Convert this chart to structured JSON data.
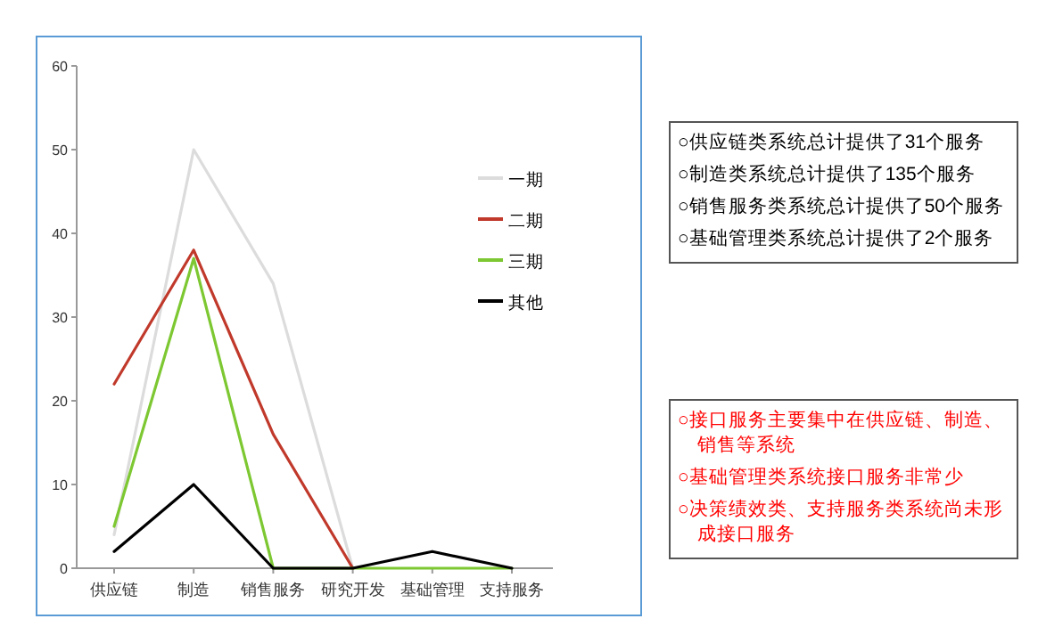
{
  "chart_data": [
    {
      "type": "line",
      "categories": [
        "供应链",
        "制造",
        "销售服务",
        "研究开发",
        "基础管理",
        "支持服务"
      ],
      "series": [
        {
          "name": "一期",
          "color": "#dcdcdc",
          "values": [
            4,
            50,
            34,
            0,
            null,
            null
          ]
        },
        {
          "name": "二期",
          "color": "#c0392b",
          "values": [
            22,
            38,
            16,
            0,
            null,
            null
          ]
        },
        {
          "name": "三期",
          "color": "#7dc832",
          "values": [
            5,
            37,
            0,
            0,
            0,
            0
          ]
        },
        {
          "name": "其他",
          "color": "#000000",
          "values": [
            2,
            10,
            0,
            0,
            2,
            0
          ]
        }
      ],
      "ylim": [
        0,
        60
      ],
      "yticks": [
        0,
        10,
        20,
        30,
        40,
        50,
        60
      ],
      "grid": false,
      "legend": "top right",
      "marker": "none",
      "line_style": "solid"
    },
    {
      "type": "other",
      "color": "#000000",
      "annotations": [
        "○供应链类系统总计提供了31个服务",
        "○制造类系统总计提供了135个服务",
        "○销售服务类系统总计提供了50个服务",
        "○基础管理类系统总计提供了2个服务"
      ]
    },
    {
      "type": "other",
      "color": "#ff0000",
      "annotations": [
        "○接口服务主要集中在供应链、制造、销售等系统",
        "○基础管理类系统接口服务非常少",
        "○决策绩效类、支持服务类系统尚未形成接口服务"
      ]
    }
  ]
}
